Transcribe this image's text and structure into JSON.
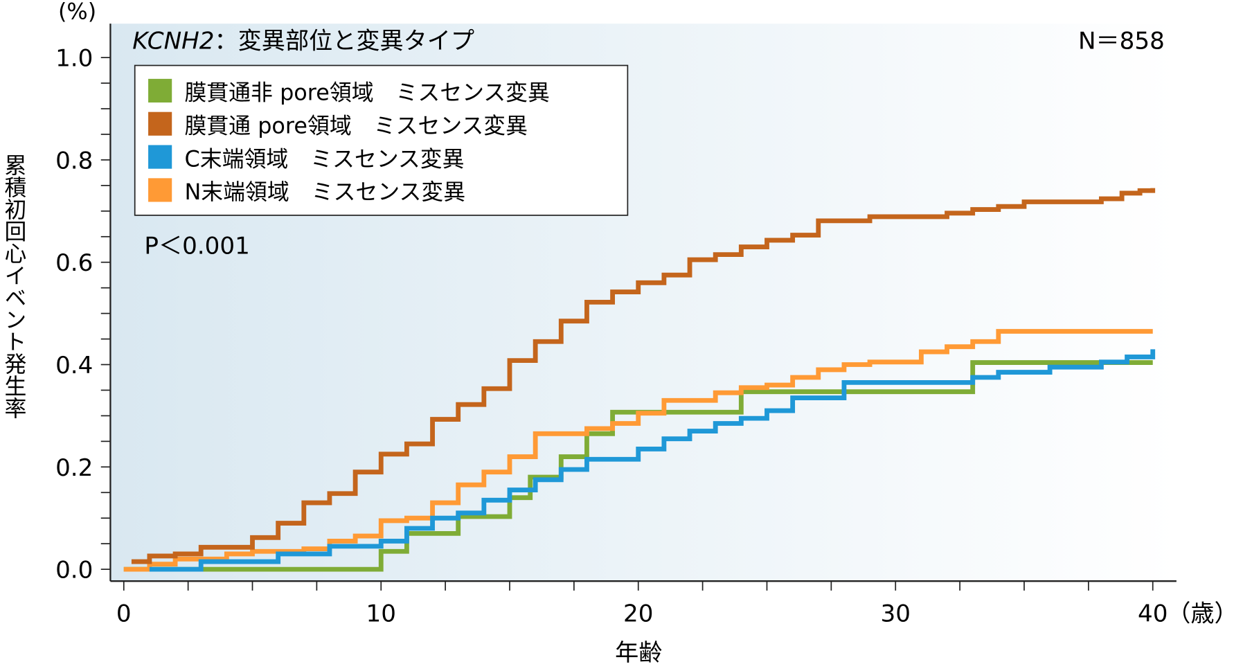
{
  "chart_data": {
    "type": "line",
    "step": true,
    "title_gene": "KCNH2",
    "title_rest": "：変異部位と変異タイプ",
    "n_label": "N＝858",
    "p_label": "P＜0.001",
    "xlabel": "年齢",
    "x_unit": "（歳）",
    "ylabel": "累積初回心イベント発生率",
    "y_unit": "(%)",
    "xlim": [
      0,
      40
    ],
    "ylim": [
      0,
      1.0
    ],
    "x_ticks": [
      "0",
      "10",
      "20",
      "30",
      "40"
    ],
    "y_ticks": [
      "0.0",
      "0.2",
      "0.4",
      "0.6",
      "0.8",
      "1.0"
    ],
    "legend_position": "top-left",
    "series": [
      {
        "name": "膜貫通非 pore領域　ミスセンス変異",
        "color": "#7fac36",
        "x": [
          0,
          10,
          11,
          13,
          15,
          15.8,
          17,
          18,
          19,
          24,
          33,
          40
        ],
        "y": [
          0,
          0.035,
          0.07,
          0.103,
          0.14,
          0.18,
          0.22,
          0.265,
          0.307,
          0.347,
          0.404,
          0.404
        ]
      },
      {
        "name": "膜貫通 pore領域　ミスセンス変異",
        "color": "#c4651c",
        "x": [
          0.3,
          1,
          2,
          3,
          5,
          6,
          7,
          8,
          9,
          10,
          11,
          12,
          13,
          14,
          15,
          16,
          17,
          18,
          19,
          20,
          21,
          22,
          23,
          24,
          25,
          26,
          27,
          29,
          32,
          33,
          34,
          35,
          38,
          38.8,
          39.5,
          40
        ],
        "y": [
          0.015,
          0.026,
          0.03,
          0.043,
          0.062,
          0.09,
          0.13,
          0.148,
          0.19,
          0.225,
          0.245,
          0.293,
          0.322,
          0.353,
          0.408,
          0.445,
          0.485,
          0.522,
          0.542,
          0.56,
          0.575,
          0.605,
          0.615,
          0.63,
          0.643,
          0.653,
          0.681,
          0.689,
          0.696,
          0.703,
          0.709,
          0.718,
          0.724,
          0.735,
          0.74,
          0.745
        ]
      },
      {
        "name": "C末端領域　ミスセンス変異",
        "color": "#1f98d7",
        "x": [
          1,
          3,
          6,
          8,
          10,
          11,
          12,
          13,
          14,
          15,
          16,
          17,
          18,
          20,
          21,
          22,
          23,
          24,
          25,
          26,
          28,
          33,
          34,
          36,
          38,
          39,
          40
        ],
        "y": [
          0,
          0.015,
          0.03,
          0.045,
          0.055,
          0.08,
          0.1,
          0.11,
          0.135,
          0.155,
          0.175,
          0.195,
          0.215,
          0.235,
          0.255,
          0.27,
          0.285,
          0.295,
          0.31,
          0.335,
          0.365,
          0.375,
          0.385,
          0.395,
          0.405,
          0.415,
          0.43
        ]
      },
      {
        "name": "N末端領域　ミスセンス変異",
        "color": "#ff9a35",
        "x": [
          0,
          1,
          2,
          4,
          5,
          7,
          8,
          9,
          10,
          11,
          12,
          13,
          14,
          15,
          16,
          18,
          19,
          20,
          21,
          23,
          24,
          25,
          26,
          27,
          28,
          29,
          31,
          32,
          33,
          34,
          40
        ],
        "y": [
          0,
          0.01,
          0.02,
          0.03,
          0.035,
          0.04,
          0.055,
          0.065,
          0.095,
          0.1,
          0.13,
          0.165,
          0.19,
          0.22,
          0.265,
          0.275,
          0.285,
          0.305,
          0.33,
          0.345,
          0.355,
          0.36,
          0.375,
          0.39,
          0.4,
          0.405,
          0.425,
          0.435,
          0.445,
          0.465,
          0.465
        ]
      }
    ]
  }
}
